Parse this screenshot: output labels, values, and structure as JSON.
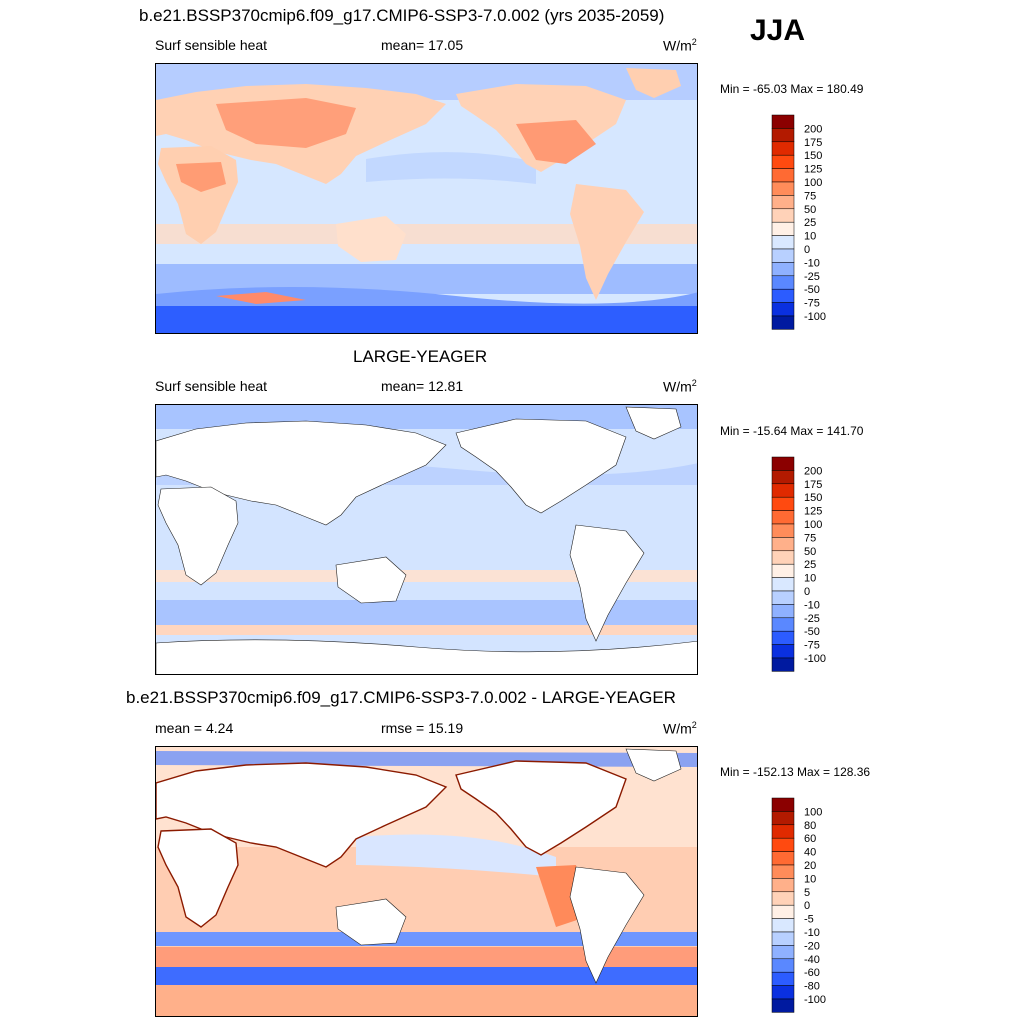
{
  "season": "JJA",
  "units_sup": "2",
  "panels": [
    {
      "title": "b.e21.BSSP370cmip6.f09_g17.CMIP6-SSP3-7.0.002 (yrs 2035-2059)",
      "left_label": "Surf sensible heat",
      "center_label": "mean=  17.05",
      "units": "W/m",
      "minmax": "Min = -65.03 Max = 180.49"
    },
    {
      "title": "LARGE-YEAGER",
      "left_label": "Surf sensible heat",
      "center_label": "mean=  12.81",
      "units": "W/m",
      "minmax": "Min = -15.64 Max = 141.70"
    },
    {
      "title": "b.e21.BSSP370cmip6.f09_g17.CMIP6-SSP3-7.0.002 - LARGE-YEAGER",
      "left_label": "mean =   4.24",
      "center_label": "rmse =  15.19",
      "units": "W/m",
      "minmax": "Min = -152.13 Max = 128.36"
    }
  ],
  "chart_data": [
    {
      "type": "heatmap",
      "title": "b.e21.BSSP370cmip6.f09_g17.CMIP6-SSP3-7.0.002 (yrs 2035-2059)",
      "variable": "Surf sensible heat",
      "mean": 17.05,
      "min": -65.03,
      "max": 180.49,
      "colorbar_levels": [
        "200",
        "175",
        "150",
        "125",
        "100",
        "75",
        "50",
        "25",
        "10",
        "0",
        "-10",
        "-25",
        "-50",
        "-75",
        "-100"
      ],
      "colors": [
        "#8b0000",
        "#b31a00",
        "#e02a00",
        "#ff4a10",
        "#ff6a33",
        "#ff8c5a",
        "#ffb08a",
        "#ffd2b8",
        "#fff0e6",
        "#d9e8ff",
        "#b8d0ff",
        "#8fb1ff",
        "#5a88ff",
        "#2c5cff",
        "#0a30e0",
        "#001aa0"
      ]
    },
    {
      "type": "heatmap",
      "title": "LARGE-YEAGER",
      "variable": "Surf sensible heat",
      "mean": 12.81,
      "min": -15.64,
      "max": 141.7,
      "colorbar_levels": [
        "200",
        "175",
        "150",
        "125",
        "100",
        "75",
        "50",
        "25",
        "10",
        "0",
        "-10",
        "-25",
        "-50",
        "-75",
        "-100"
      ],
      "colors": [
        "#8b0000",
        "#b31a00",
        "#e02a00",
        "#ff4a10",
        "#ff6a33",
        "#ff8c5a",
        "#ffb08a",
        "#ffd2b8",
        "#fff0e6",
        "#d9e8ff",
        "#b8d0ff",
        "#8fb1ff",
        "#5a88ff",
        "#2c5cff",
        "#0a30e0",
        "#001aa0"
      ]
    },
    {
      "type": "heatmap",
      "title": "b.e21.BSSP370cmip6.f09_g17.CMIP6-SSP3-7.0.002 - LARGE-YEAGER",
      "mean": 4.24,
      "rmse": 15.19,
      "min": -152.13,
      "max": 128.36,
      "colorbar_levels": [
        "100",
        "80",
        "60",
        "40",
        "20",
        "10",
        "5",
        "0",
        "-5",
        "-10",
        "-20",
        "-40",
        "-60",
        "-80",
        "-100"
      ],
      "colors": [
        "#8b0000",
        "#b31a00",
        "#e02a00",
        "#ff4a10",
        "#ff6a33",
        "#ff8c5a",
        "#ffb08a",
        "#ffd2b8",
        "#fff0e6",
        "#d9e8ff",
        "#b8d0ff",
        "#8fb1ff",
        "#5a88ff",
        "#2c5cff",
        "#0a30e0",
        "#001aa0"
      ]
    }
  ]
}
